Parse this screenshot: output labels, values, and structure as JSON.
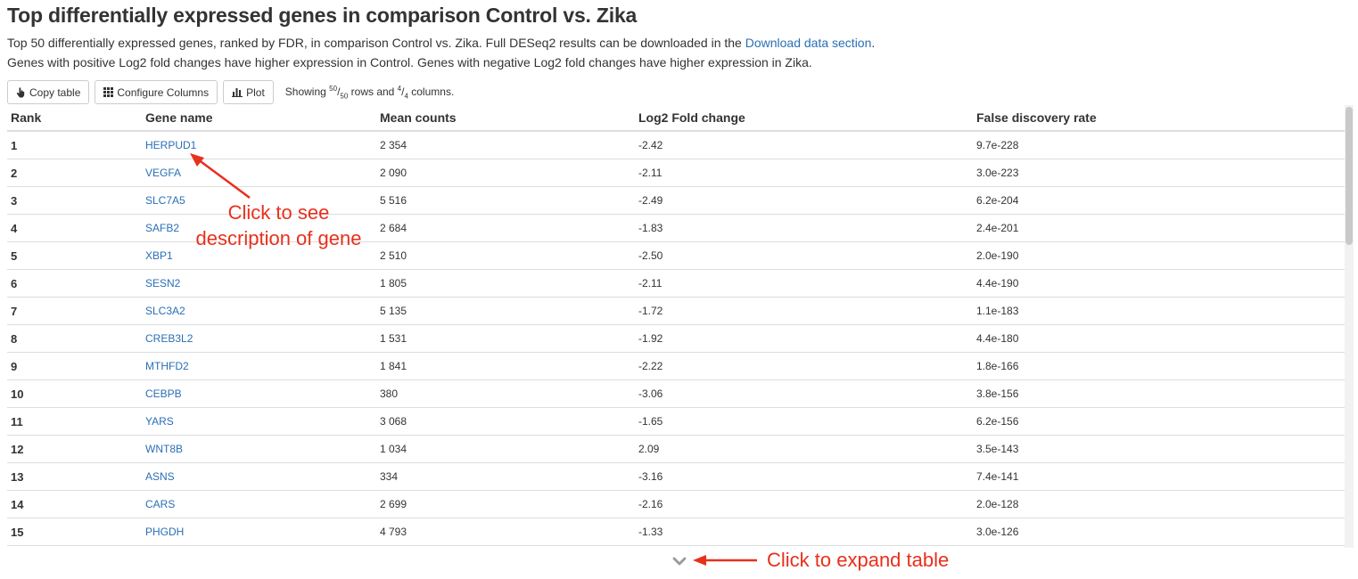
{
  "page": {
    "title": "Top differentially expressed genes in comparison Control vs. Zika",
    "description_line1_prefix": "Top 50 differentially expressed genes, ranked by FDR, in comparison Control vs. Zika. Full DESeq2 results can be downloaded in the ",
    "description_link": "Download data section",
    "description_line1_suffix": ".",
    "description_line2": "Genes with positive Log2 fold changes have higher expression in Control. Genes with negative Log2 fold changes have higher expression in Zika."
  },
  "toolbar": {
    "copy_label": "Copy table",
    "configure_label": "Configure Columns",
    "plot_label": "Plot",
    "showing_prefix": "Showing ",
    "rows_shown": "50",
    "rows_total": "50",
    "rows_suffix": " rows and ",
    "cols_shown": "4",
    "cols_total": "4",
    "cols_suffix": " columns."
  },
  "table": {
    "headers": [
      "Rank",
      "Gene name",
      "Mean counts",
      "Log2 Fold change",
      "False discovery rate"
    ],
    "rows": [
      {
        "rank": "1",
        "gene": "HERPUD1",
        "mean": "2 354",
        "lfc": "-2.42",
        "fdr": "9.7e-228"
      },
      {
        "rank": "2",
        "gene": "VEGFA",
        "mean": "2 090",
        "lfc": "-2.11",
        "fdr": "3.0e-223"
      },
      {
        "rank": "3",
        "gene": "SLC7A5",
        "mean": "5 516",
        "lfc": "-2.49",
        "fdr": "6.2e-204"
      },
      {
        "rank": "4",
        "gene": "SAFB2",
        "mean": "2 684",
        "lfc": "-1.83",
        "fdr": "2.4e-201"
      },
      {
        "rank": "5",
        "gene": "XBP1",
        "mean": "2 510",
        "lfc": "-2.50",
        "fdr": "2.0e-190"
      },
      {
        "rank": "6",
        "gene": "SESN2",
        "mean": "1 805",
        "lfc": "-2.11",
        "fdr": "4.4e-190"
      },
      {
        "rank": "7",
        "gene": "SLC3A2",
        "mean": "5 135",
        "lfc": "-1.72",
        "fdr": "1.1e-183"
      },
      {
        "rank": "8",
        "gene": "CREB3L2",
        "mean": "1 531",
        "lfc": "-1.92",
        "fdr": "4.4e-180"
      },
      {
        "rank": "9",
        "gene": "MTHFD2",
        "mean": "1 841",
        "lfc": "-2.22",
        "fdr": "1.8e-166"
      },
      {
        "rank": "10",
        "gene": "CEBPB",
        "mean": "380",
        "lfc": "-3.06",
        "fdr": "3.8e-156"
      },
      {
        "rank": "11",
        "gene": "YARS",
        "mean": "3 068",
        "lfc": "-1.65",
        "fdr": "6.2e-156"
      },
      {
        "rank": "12",
        "gene": "WNT8B",
        "mean": "1 034",
        "lfc": "2.09",
        "fdr": "3.5e-143"
      },
      {
        "rank": "13",
        "gene": "ASNS",
        "mean": "334",
        "lfc": "-3.16",
        "fdr": "7.4e-141"
      },
      {
        "rank": "14",
        "gene": "CARS",
        "mean": "2 699",
        "lfc": "-2.16",
        "fdr": "2.0e-128"
      },
      {
        "rank": "15",
        "gene": "PHGDH",
        "mean": "4 793",
        "lfc": "-1.33",
        "fdr": "3.0e-126"
      }
    ]
  },
  "annotations": {
    "gene_line1": "Click to see",
    "gene_line2": "description of gene",
    "expand": "Click to expand table"
  },
  "colors": {
    "link": "#2a6fb5",
    "annotation": "#e8301c",
    "border": "#dddddd",
    "text": "#333333"
  },
  "icons": {
    "copy": "hand-pointer-icon",
    "configure": "grid-icon",
    "plot": "bar-chart-icon",
    "expand": "chevron-down-icon"
  }
}
